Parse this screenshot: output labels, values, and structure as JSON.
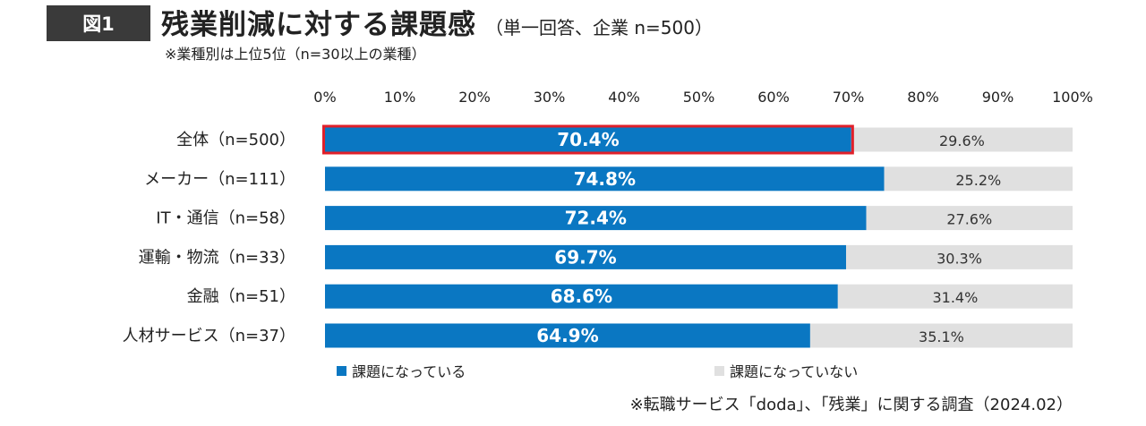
{
  "header": {
    "badge": "図1",
    "title": "残業削減に対する課題感",
    "title_note": "（単一回答、企業 n=500）",
    "subtitle": "※業種別は上位5位（n=30以上の業種）"
  },
  "chart_data": {
    "type": "bar",
    "orientation": "horizontal",
    "stacked": true,
    "categories": [
      "全体（n=500）",
      "メーカー（n=111）",
      "IT・通信（n=58）",
      "運輸・物流（n=33）",
      "金融（n=51）",
      "人材サービス（n=37）"
    ],
    "series": [
      {
        "name": "課題になっている",
        "values": [
          70.4,
          74.8,
          72.4,
          69.7,
          68.6,
          64.9
        ],
        "color": "#0a77c2"
      },
      {
        "name": "課題になっていない",
        "values": [
          29.6,
          25.2,
          27.6,
          30.3,
          31.4,
          35.1
        ],
        "color": "#e0e0e0"
      }
    ],
    "data_labels": [
      [
        "70.4%",
        "74.8%",
        "72.4%",
        "69.7%",
        "68.6%",
        "64.9%"
      ],
      [
        "29.6%",
        "25.2%",
        "27.6%",
        "30.3%",
        "31.4%",
        "35.1%"
      ]
    ],
    "xaxis_ticks": [
      "0%",
      "10%",
      "20%",
      "30%",
      "40%",
      "50%",
      "60%",
      "70%",
      "80%",
      "90%",
      "100%"
    ],
    "xlim": [
      0,
      100
    ],
    "axis_position": "top",
    "highlight_category": "全体（n=500）",
    "highlight_color": "#e0202a",
    "legend_position": "bottom"
  },
  "legend": {
    "items": [
      {
        "label": "課題になっている",
        "color": "#0a77c2"
      },
      {
        "label": "課題になっていない",
        "color": "#e0e0e0"
      }
    ]
  },
  "footer": {
    "source": "※転職サービス「doda」、「残業」に関する調査（2024.02）"
  }
}
